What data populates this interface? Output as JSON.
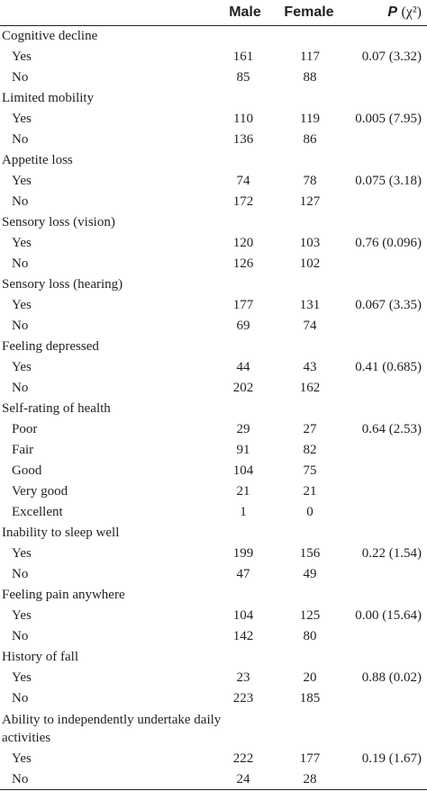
{
  "header": {
    "col_male": "Male",
    "col_female": "Female",
    "col_p": "P",
    "col_chi": "(χ²)"
  },
  "groups": [
    {
      "label": "Cognitive decline",
      "rows": [
        {
          "label": "Yes",
          "male": "161",
          "female": "117",
          "p": "0.07 (3.32)"
        },
        {
          "label": "No",
          "male": "85",
          "female": "88",
          "p": ""
        }
      ]
    },
    {
      "label": "Limited mobility",
      "rows": [
        {
          "label": "Yes",
          "male": "110",
          "female": "119",
          "p": "0.005 (7.95)"
        },
        {
          "label": "No",
          "male": "136",
          "female": "86",
          "p": ""
        }
      ]
    },
    {
      "label": "Appetite loss",
      "rows": [
        {
          "label": "Yes",
          "male": "74",
          "female": "78",
          "p": "0.075 (3.18)"
        },
        {
          "label": "No",
          "male": "172",
          "female": "127",
          "p": ""
        }
      ]
    },
    {
      "label": "Sensory loss (vision)",
      "rows": [
        {
          "label": "Yes",
          "male": "120",
          "female": "103",
          "p": "0.76 (0.096)"
        },
        {
          "label": "No",
          "male": "126",
          "female": "102",
          "p": ""
        }
      ]
    },
    {
      "label": "Sensory loss (hearing)",
      "rows": [
        {
          "label": "Yes",
          "male": "177",
          "female": "131",
          "p": "0.067 (3.35)"
        },
        {
          "label": "No",
          "male": "69",
          "female": "74",
          "p": ""
        }
      ]
    },
    {
      "label": "Feeling depressed",
      "rows": [
        {
          "label": "Yes",
          "male": "44",
          "female": "43",
          "p": "0.41 (0.685)"
        },
        {
          "label": "No",
          "male": "202",
          "female": "162",
          "p": ""
        }
      ]
    },
    {
      "label": "Self-rating of health",
      "rows": [
        {
          "label": "Poor",
          "male": "29",
          "female": "27",
          "p": "0.64 (2.53)"
        },
        {
          "label": "Fair",
          "male": "91",
          "female": "82",
          "p": ""
        },
        {
          "label": "Good",
          "male": "104",
          "female": "75",
          "p": ""
        },
        {
          "label": "Very good",
          "male": "21",
          "female": "21",
          "p": ""
        },
        {
          "label": "Excellent",
          "male": "1",
          "female": "0",
          "p": ""
        }
      ]
    },
    {
      "label": "Inability to sleep well",
      "rows": [
        {
          "label": "Yes",
          "male": "199",
          "female": "156",
          "p": "0.22 (1.54)"
        },
        {
          "label": "No",
          "male": "47",
          "female": "49",
          "p": ""
        }
      ]
    },
    {
      "label": "Feeling pain anywhere",
      "rows": [
        {
          "label": "Yes",
          "male": "104",
          "female": "125",
          "p": "0.00 (15.64)"
        },
        {
          "label": "No",
          "male": "142",
          "female": "80",
          "p": ""
        }
      ]
    },
    {
      "label": "History of fall",
      "rows": [
        {
          "label": "Yes",
          "male": "23",
          "female": "20",
          "p": "0.88 (0.02)"
        },
        {
          "label": "No",
          "male": "223",
          "female": "185",
          "p": ""
        }
      ]
    },
    {
      "label": "Ability to independently undertake daily activities",
      "rows": [
        {
          "label": "Yes",
          "male": "222",
          "female": "177",
          "p": "0.19 (1.67)"
        },
        {
          "label": "No",
          "male": "24",
          "female": "28",
          "p": ""
        }
      ]
    }
  ]
}
